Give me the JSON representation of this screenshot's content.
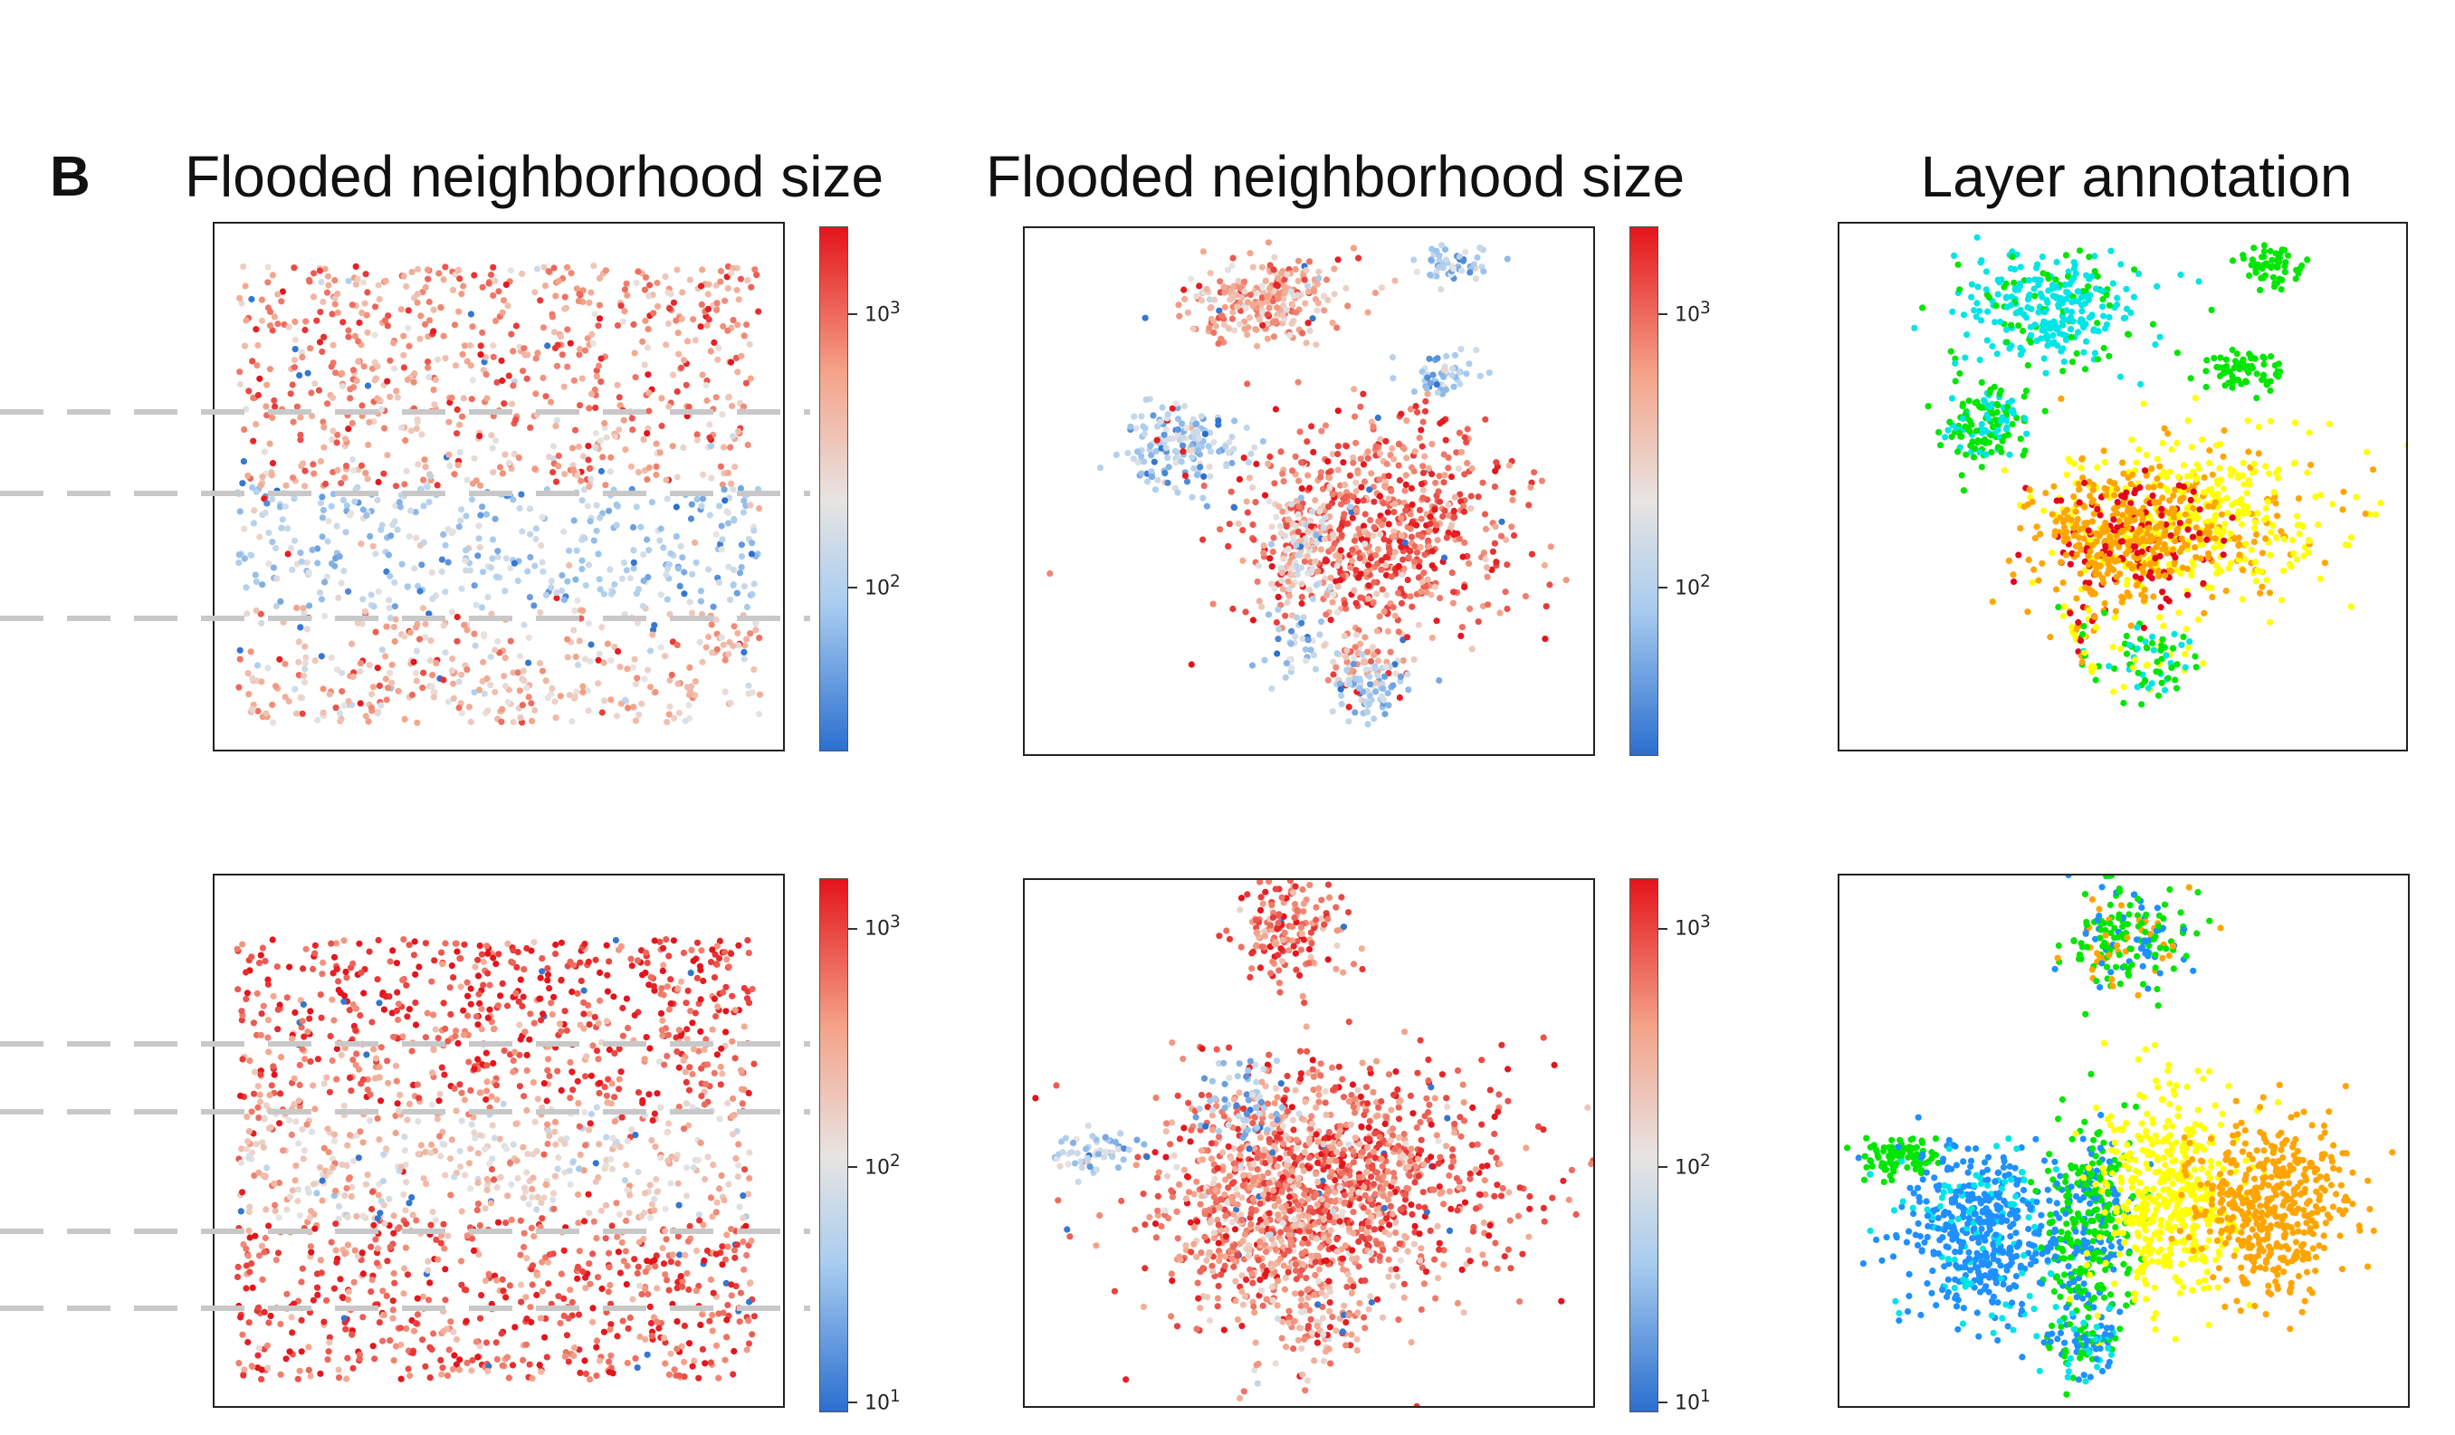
{
  "figure": {
    "panel_letter": "B",
    "column_titles": [
      "Flooded neighborhood size",
      "Flooded neighborhood size",
      "Layer annotation"
    ],
    "colorbar_ticks": {
      "top_row": [
        {
          "base": "10",
          "exp": "3"
        },
        {
          "base": "10",
          "exp": "2"
        }
      ],
      "bottom_row": [
        {
          "base": "10",
          "exp": "3"
        },
        {
          "base": "10",
          "exp": "2"
        },
        {
          "base": "10",
          "exp": "1"
        }
      ]
    },
    "colors": {
      "high": "#e4141b",
      "mid": "#e8e4e2",
      "low": "#2b6fcf",
      "layer_palette": [
        "#00e5e5",
        "#00e600",
        "#ffff00",
        "#ffa500",
        "#1e90ff",
        "#e6001e"
      ]
    }
  },
  "chart_data": [
    {
      "type": "scatter",
      "title": "Flooded neighborhood size",
      "color_scale": "log",
      "colorbar_range": [
        25,
        2000
      ],
      "layer_boundaries_shown": 3,
      "description_of_layout": "spatial"
    },
    {
      "type": "scatter",
      "title": "Flooded neighborhood size",
      "color_scale": "log",
      "colorbar_range": [
        25,
        2000
      ]
    },
    {
      "type": "scatter",
      "title": "Layer annotation"
    },
    {
      "type": "scatter",
      "title": "",
      "color_scale": "log",
      "colorbar_range": [
        8,
        1600
      ],
      "layer_boundaries_shown": 4
    },
    {
      "type": "scatter",
      "title": "",
      "color_scale": "log",
      "colorbar_range": [
        8,
        1600
      ]
    },
    {
      "type": "scatter",
      "title": ""
    }
  ]
}
